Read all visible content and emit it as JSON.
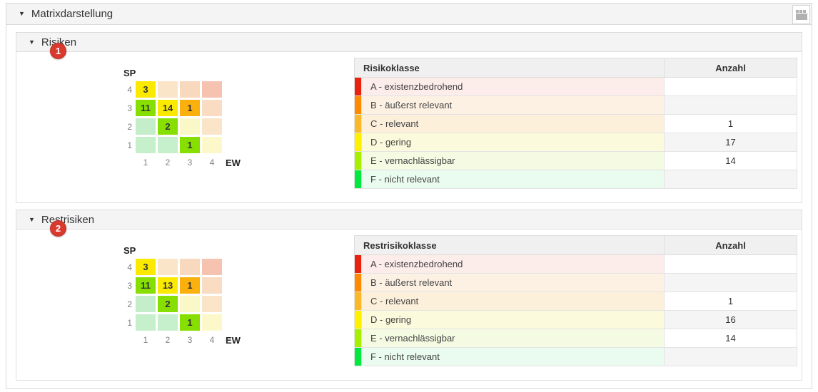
{
  "panel": {
    "title": "Matrixdarstellung",
    "caret_icon": "▼",
    "layout_icon": "table-layout"
  },
  "badge_color": "#da392e",
  "sections": [
    {
      "id": "risiken",
      "title": "Risiken",
      "badge": "1",
      "matrix": {
        "y_label": "SP",
        "x_label": "EW",
        "row_labels": [
          "4",
          "3",
          "2",
          "1"
        ],
        "col_labels": [
          "1",
          "2",
          "3",
          "4"
        ],
        "rows": [
          [
            {
              "v": "3",
              "bg": "#fbea00"
            },
            {
              "v": "",
              "bg": "#fbe5c9"
            },
            {
              "v": "",
              "bg": "#f9d9be"
            },
            {
              "v": "",
              "bg": "#f6c3b1"
            }
          ],
          [
            {
              "v": "11",
              "bg": "#86df00"
            },
            {
              "v": "14",
              "bg": "#fbea00"
            },
            {
              "v": "1",
              "bg": "#fbb00e"
            },
            {
              "v": "",
              "bg": "#fadcc2"
            }
          ],
          [
            {
              "v": "",
              "bg": "#c3eec9"
            },
            {
              "v": "2",
              "bg": "#86df00"
            },
            {
              "v": "",
              "bg": "#fbf8c8"
            },
            {
              "v": "",
              "bg": "#fbe5c9"
            }
          ],
          [
            {
              "v": "",
              "bg": "#c6f0cc"
            },
            {
              "v": "",
              "bg": "#c6f0cc"
            },
            {
              "v": "1",
              "bg": "#86df00"
            },
            {
              "v": "",
              "bg": "#fcf8c9"
            }
          ]
        ]
      },
      "table": {
        "class_header": "Risikoklasse",
        "count_header": "Anzahl",
        "rows": [
          {
            "label": "A - existenzbedrohend",
            "count": "",
            "swatch": "#e8220e",
            "bg": "#fcecea",
            "count_bg": "#ffffff"
          },
          {
            "label": "B - äußerst relevant",
            "count": "",
            "swatch": "#ff8a00",
            "bg": "#fdf1e3",
            "count_bg": "#f5f5f5"
          },
          {
            "label": "C - relevant",
            "count": "1",
            "swatch": "#fbb829",
            "bg": "#fdf0db",
            "count_bg": "#ffffff"
          },
          {
            "label": "D - gering",
            "count": "17",
            "swatch": "#fdf000",
            "bg": "#fcfadc",
            "count_bg": "#f5f5f5"
          },
          {
            "label": "E - vernachlässigbar",
            "count": "14",
            "swatch": "#a6ef00",
            "bg": "#f5fbe3",
            "count_bg": "#ffffff"
          },
          {
            "label": "F - nicht relevant",
            "count": "",
            "swatch": "#00e93c",
            "bg": "#eafbef",
            "count_bg": "#f5f5f5"
          }
        ]
      }
    },
    {
      "id": "restrisiken",
      "title": "Restrisiken",
      "badge": "2",
      "matrix": {
        "y_label": "SP",
        "x_label": "EW",
        "row_labels": [
          "4",
          "3",
          "2",
          "1"
        ],
        "col_labels": [
          "1",
          "2",
          "3",
          "4"
        ],
        "rows": [
          [
            {
              "v": "3",
              "bg": "#fbea00"
            },
            {
              "v": "",
              "bg": "#fbe5c9"
            },
            {
              "v": "",
              "bg": "#f9d9be"
            },
            {
              "v": "",
              "bg": "#f6c3b1"
            }
          ],
          [
            {
              "v": "11",
              "bg": "#86df00"
            },
            {
              "v": "13",
              "bg": "#fbea00"
            },
            {
              "v": "1",
              "bg": "#fbb00e"
            },
            {
              "v": "",
              "bg": "#fadcc2"
            }
          ],
          [
            {
              "v": "",
              "bg": "#c3eec9"
            },
            {
              "v": "2",
              "bg": "#86df00"
            },
            {
              "v": "",
              "bg": "#fbf8c8"
            },
            {
              "v": "",
              "bg": "#fbe5c9"
            }
          ],
          [
            {
              "v": "",
              "bg": "#c6f0cc"
            },
            {
              "v": "",
              "bg": "#c6f0cc"
            },
            {
              "v": "1",
              "bg": "#86df00"
            },
            {
              "v": "",
              "bg": "#fcf8c9"
            }
          ]
        ]
      },
      "table": {
        "class_header": "Restrisikoklasse",
        "count_header": "Anzahl",
        "rows": [
          {
            "label": "A - existenzbedrohend",
            "count": "",
            "swatch": "#e8220e",
            "bg": "#fcecea",
            "count_bg": "#ffffff"
          },
          {
            "label": "B - äußerst relevant",
            "count": "",
            "swatch": "#ff8a00",
            "bg": "#fdf1e3",
            "count_bg": "#f5f5f5"
          },
          {
            "label": "C - relevant",
            "count": "1",
            "swatch": "#fbb829",
            "bg": "#fdf0db",
            "count_bg": "#ffffff"
          },
          {
            "label": "D - gering",
            "count": "16",
            "swatch": "#fdf000",
            "bg": "#fcfadc",
            "count_bg": "#f5f5f5"
          },
          {
            "label": "E - vernachlässigbar",
            "count": "14",
            "swatch": "#a6ef00",
            "bg": "#f5fbe3",
            "count_bg": "#ffffff"
          },
          {
            "label": "F - nicht relevant",
            "count": "",
            "swatch": "#00e93c",
            "bg": "#eafbef",
            "count_bg": "#f5f5f5"
          }
        ]
      }
    }
  ]
}
